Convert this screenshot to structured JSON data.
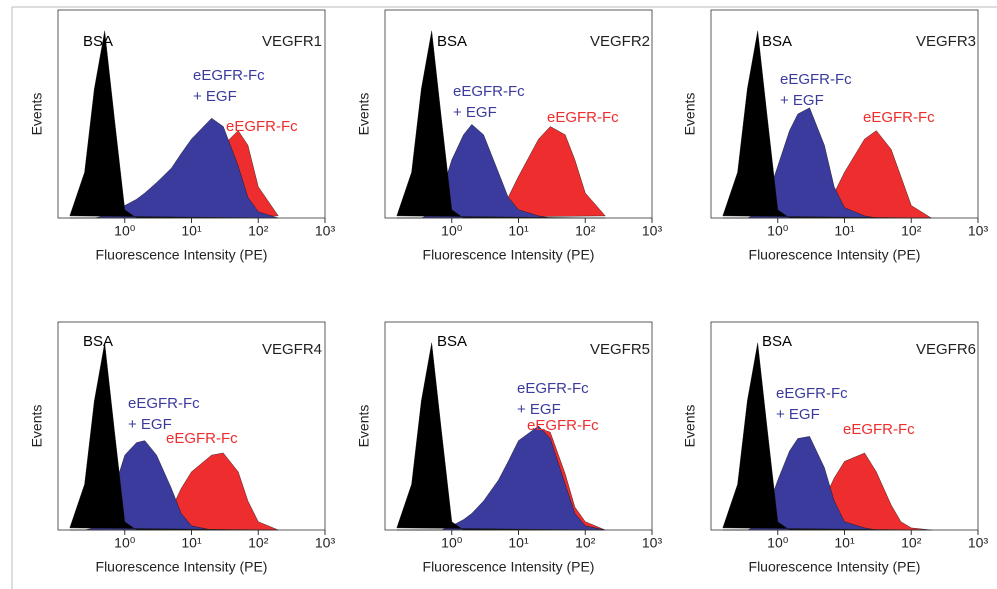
{
  "chart_data": [
    {
      "type": "area",
      "title": "VEGFR1",
      "xlabel": "Fluorescence Intensity (PE)",
      "ylabel": "Events",
      "log_x": true,
      "x": [
        0.15,
        0.25,
        0.35,
        0.5,
        0.7,
        1,
        1.5,
        2,
        3,
        5,
        7,
        10,
        20,
        30,
        50,
        70,
        100,
        200
      ],
      "xlim": [
        0.1,
        1000
      ],
      "xticks": [
        {
          "value": 1,
          "label": "10⁰"
        },
        {
          "value": 10,
          "label": "10¹"
        },
        {
          "value": 100,
          "label": "10²"
        },
        {
          "value": 1000,
          "label": "10³"
        }
      ],
      "ylim": [
        0,
        100
      ],
      "series": [
        {
          "name": [
            "BSA"
          ],
          "color": "#000000",
          "values": [
            1,
            22,
            62,
            90,
            48,
            4,
            0,
            0,
            0,
            0,
            0,
            0,
            0,
            0,
            0,
            0,
            0,
            0
          ]
        },
        {
          "name": [
            "eEGFR-Fc",
            "+ EGF"
          ],
          "color": "#3b3b9e",
          "values": [
            0,
            0,
            0,
            1,
            3,
            6,
            9,
            12,
            17,
            24,
            31,
            38,
            48,
            44,
            25,
            10,
            3,
            0
          ]
        },
        {
          "name": [
            "eEGFR-Fc"
          ],
          "color": "#ee2e2e",
          "values": [
            0,
            0,
            0,
            0,
            0,
            0,
            0,
            0,
            0,
            0,
            1,
            3,
            25,
            35,
            42,
            35,
            15,
            1
          ]
        }
      ]
    },
    {
      "type": "area",
      "title": "VEGFR2",
      "xlabel": "Fluorescence Intensity (PE)",
      "ylabel": "Events",
      "log_x": true,
      "x": [
        0.15,
        0.25,
        0.35,
        0.5,
        0.7,
        1,
        1.5,
        2,
        3,
        5,
        7,
        10,
        20,
        30,
        50,
        70,
        100,
        200
      ],
      "xlim": [
        0.1,
        1000
      ],
      "xticks": [
        {
          "value": 1,
          "label": "10⁰"
        },
        {
          "value": 10,
          "label": "10¹"
        },
        {
          "value": 100,
          "label": "10²"
        },
        {
          "value": 1000,
          "label": "10³"
        }
      ],
      "ylim": [
        0,
        100
      ],
      "series": [
        {
          "name": [
            "BSA"
          ],
          "color": "#000000",
          "values": [
            1,
            22,
            62,
            90,
            48,
            4,
            0,
            0,
            0,
            0,
            0,
            0,
            0,
            0,
            0,
            0,
            0,
            0
          ]
        },
        {
          "name": [
            "eEGFR-Fc",
            "+ EGF"
          ],
          "color": "#3b3b9e",
          "values": [
            0,
            0,
            0,
            2,
            12,
            28,
            40,
            45,
            40,
            22,
            10,
            4,
            1,
            0,
            0,
            0,
            0,
            0
          ]
        },
        {
          "name": [
            "eEGFR-Fc"
          ],
          "color": "#ee2e2e",
          "values": [
            0,
            0,
            0,
            0,
            0,
            0,
            0,
            0,
            1,
            4,
            10,
            20,
            38,
            44,
            40,
            28,
            12,
            1
          ]
        }
      ]
    },
    {
      "type": "area",
      "title": "VEGFR3",
      "xlabel": "Fluorescence Intensity (PE)",
      "ylabel": "Events",
      "log_x": true,
      "x": [
        0.15,
        0.25,
        0.35,
        0.5,
        0.7,
        1,
        1.5,
        2,
        3,
        5,
        7,
        10,
        20,
        30,
        50,
        70,
        100,
        200
      ],
      "xlim": [
        0.1,
        1000
      ],
      "xticks": [
        {
          "value": 1,
          "label": "10⁰"
        },
        {
          "value": 10,
          "label": "10¹"
        },
        {
          "value": 100,
          "label": "10²"
        },
        {
          "value": 1000,
          "label": "10³"
        }
      ],
      "ylim": [
        0,
        100
      ],
      "series": [
        {
          "name": [
            "BSA"
          ],
          "color": "#000000",
          "values": [
            1,
            22,
            62,
            90,
            48,
            4,
            0,
            0,
            0,
            0,
            0,
            0,
            0,
            0,
            0,
            0,
            0,
            0
          ]
        },
        {
          "name": [
            "eEGFR-Fc",
            "+ EGF"
          ],
          "color": "#3b3b9e",
          "values": [
            0,
            0,
            0,
            2,
            10,
            25,
            42,
            50,
            53,
            35,
            15,
            5,
            1,
            0,
            0,
            0,
            0,
            0
          ]
        },
        {
          "name": [
            "eEGFR-Fc"
          ],
          "color": "#ee2e2e",
          "values": [
            0,
            0,
            0,
            0,
            0,
            0,
            0,
            0,
            1,
            5,
            12,
            22,
            38,
            42,
            33,
            20,
            6,
            0
          ]
        }
      ]
    },
    {
      "type": "area",
      "title": "VEGFR4",
      "xlabel": "Fluorescence Intensity (PE)",
      "ylabel": "Events",
      "log_x": true,
      "x": [
        0.15,
        0.25,
        0.35,
        0.5,
        0.7,
        1,
        1.5,
        2,
        3,
        5,
        7,
        10,
        20,
        30,
        50,
        70,
        100,
        200
      ],
      "xlim": [
        0.1,
        1000
      ],
      "xticks": [
        {
          "value": 1,
          "label": "10⁰"
        },
        {
          "value": 10,
          "label": "10¹"
        },
        {
          "value": 100,
          "label": "10²"
        },
        {
          "value": 1000,
          "label": "10³"
        }
      ],
      "ylim": [
        0,
        100
      ],
      "series": [
        {
          "name": [
            "BSA"
          ],
          "color": "#000000",
          "values": [
            1,
            22,
            62,
            90,
            48,
            4,
            0,
            0,
            0,
            0,
            0,
            0,
            0,
            0,
            0,
            0,
            0,
            0
          ]
        },
        {
          "name": [
            "eEGFR-Fc",
            "+ EGF"
          ],
          "color": "#3b3b9e",
          "values": [
            0,
            0,
            1,
            6,
            20,
            36,
            42,
            43,
            36,
            20,
            8,
            2,
            0,
            0,
            0,
            0,
            0,
            0
          ]
        },
        {
          "name": [
            "eEGFR-Fc"
          ],
          "color": "#ee2e2e",
          "values": [
            0,
            0,
            0,
            0,
            0,
            0,
            0,
            0,
            2,
            10,
            20,
            28,
            36,
            37,
            28,
            14,
            4,
            0
          ]
        }
      ]
    },
    {
      "type": "area",
      "title": "VEGFR5",
      "xlabel": "Fluorescence Intensity (PE)",
      "ylabel": "Events",
      "log_x": true,
      "x": [
        0.15,
        0.25,
        0.35,
        0.5,
        0.7,
        1,
        1.5,
        2,
        3,
        5,
        7,
        10,
        20,
        30,
        50,
        70,
        100,
        200
      ],
      "xlim": [
        0.1,
        1000
      ],
      "xticks": [
        {
          "value": 1,
          "label": "10⁰"
        },
        {
          "value": 10,
          "label": "10¹"
        },
        {
          "value": 100,
          "label": "10²"
        },
        {
          "value": 1000,
          "label": "10³"
        }
      ],
      "ylim": [
        0,
        100
      ],
      "series": [
        {
          "name": [
            "BSA"
          ],
          "color": "#000000",
          "values": [
            1,
            22,
            62,
            90,
            48,
            4,
            0,
            0,
            0,
            0,
            0,
            0,
            0,
            0,
            0,
            0,
            0,
            0
          ]
        },
        {
          "name": [
            "eEGFR-Fc",
            "+ EGF"
          ],
          "color": "#3b3b9e",
          "values": [
            0,
            0,
            0,
            0,
            0,
            2,
            5,
            8,
            14,
            24,
            33,
            43,
            50,
            44,
            22,
            8,
            2,
            0
          ]
        },
        {
          "name": [
            "eEGFR-Fc"
          ],
          "color": "#ee2e2e",
          "values": [
            0,
            0,
            0,
            0,
            0,
            1,
            3,
            6,
            12,
            22,
            31,
            40,
            49,
            47,
            27,
            11,
            4,
            0
          ]
        }
      ]
    },
    {
      "type": "area",
      "title": "VEGFR6",
      "xlabel": "Fluorescence Intensity (PE)",
      "ylabel": "Events",
      "log_x": true,
      "x": [
        0.15,
        0.25,
        0.35,
        0.5,
        0.7,
        1,
        1.5,
        2,
        3,
        5,
        7,
        10,
        20,
        30,
        50,
        70,
        100,
        200
      ],
      "xlim": [
        0.1,
        1000
      ],
      "xticks": [
        {
          "value": 1,
          "label": "10⁰"
        },
        {
          "value": 10,
          "label": "10¹"
        },
        {
          "value": 100,
          "label": "10²"
        },
        {
          "value": 1000,
          "label": "10³"
        }
      ],
      "ylim": [
        0,
        100
      ],
      "series": [
        {
          "name": [
            "BSA"
          ],
          "color": "#000000",
          "values": [
            1,
            22,
            62,
            90,
            48,
            4,
            0,
            0,
            0,
            0,
            0,
            0,
            0,
            0,
            0,
            0,
            0,
            0
          ]
        },
        {
          "name": [
            "eEGFR-Fc",
            "+ EGF"
          ],
          "color": "#3b3b9e",
          "values": [
            0,
            0,
            0,
            2,
            10,
            24,
            38,
            44,
            45,
            30,
            14,
            4,
            1,
            0,
            0,
            0,
            0,
            0
          ]
        },
        {
          "name": [
            "eEGFR-Fc"
          ],
          "color": "#ee2e2e",
          "values": [
            0,
            0,
            0,
            0,
            0,
            0,
            0,
            1,
            4,
            15,
            25,
            33,
            37,
            28,
            12,
            4,
            1,
            0
          ]
        }
      ]
    }
  ]
}
